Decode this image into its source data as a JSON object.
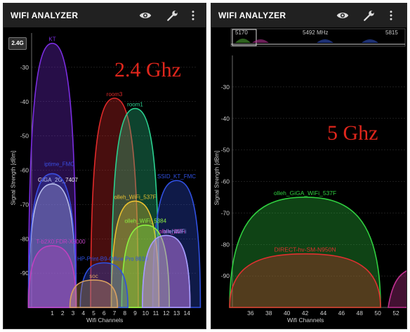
{
  "left": {
    "app_title": "WIFI ANALYZER",
    "band_button": "2.4G",
    "band_label": "2.4 Ghz",
    "y_axis_label": "Signal Strength [dBm]",
    "x_axis_label": "Wifi Channels",
    "y_ticks": [
      "-30",
      "-40",
      "-50",
      "-60",
      "-70",
      "-80",
      "-90"
    ],
    "x_ticks": [
      "1",
      "2",
      "3",
      "4",
      "5",
      "6",
      "7",
      "8",
      "9",
      "10",
      "11",
      "12",
      "13",
      "14"
    ],
    "networks": [
      "KT",
      "room3",
      "room1",
      "SSID_KT_FMC",
      "GiGA_2G_7407",
      "iptime_FMC",
      "olleh_WiFi_537F",
      "olleh_WiFi_5384",
      "olleh_WiFi",
      "T-b2X0:FDR-X3000",
      "HP-Print-B9-Office Pro 8610",
      "soc",
      "ollehWiFi"
    ]
  },
  "right": {
    "app_title": "WIFI ANALYZER",
    "band_label": "5 Ghz",
    "y_axis_label": "Signal Strength [dBm]",
    "x_axis_label": "Wifi Channels",
    "y_ticks": [
      "-30",
      "-40",
      "-50",
      "-60",
      "-70",
      "-80",
      "-90"
    ],
    "x_ticks": [
      "36",
      "38",
      "40",
      "42",
      "44",
      "46",
      "48",
      "50",
      "52"
    ],
    "freq_labels": [
      "5170",
      "5492 MHz",
      "5815"
    ],
    "networks": [
      "olleh_GiGA_WiFi_537F",
      "DIRECT-hv-SM-N950N"
    ]
  },
  "chart_data": [
    {
      "type": "area",
      "title": "2.4 Ghz",
      "xlabel": "Wifi Channels",
      "ylabel": "Signal Strength [dBm]",
      "xlim": [
        -1,
        15
      ],
      "ylim": [
        -100,
        -20
      ],
      "series": [
        {
          "name": "KT",
          "channel": 1,
          "dbm": -23,
          "color": "#7a2de0"
        },
        {
          "name": "room3",
          "channel": 7,
          "dbm": -39,
          "color": "#e02a2a"
        },
        {
          "name": "room1",
          "channel": 9,
          "dbm": -42,
          "color": "#2ad08f"
        },
        {
          "name": "SSID_KT_FMC",
          "channel": 13,
          "dbm": -63,
          "color": "#3050e0"
        },
        {
          "name": "GiGA_2G_7407",
          "channel": 1,
          "dbm": -64,
          "color": "#f0f0f0"
        },
        {
          "name": "iptime_FMC",
          "channel": 1,
          "dbm": -61,
          "color": "#3a4de0"
        },
        {
          "name": "olleh_WiFi_537F",
          "channel": 9,
          "dbm": -69,
          "color": "#e8c030"
        },
        {
          "name": "olleh_WiFi_5384",
          "channel": 10,
          "dbm": -76,
          "color": "#8cf040"
        },
        {
          "name": "olleh_WiFi",
          "channel": 12,
          "dbm": -79,
          "color": "#e040c0"
        },
        {
          "name": "T-b2X0:FDR-X3000",
          "channel": 1,
          "dbm": -82,
          "color": "#c040c0"
        },
        {
          "name": "HP-Print-B9-Office Pro 8610",
          "channel": 6,
          "dbm": -87,
          "color": "#2e4fe0"
        },
        {
          "name": "soc",
          "channel": 5,
          "dbm": -92,
          "color": "#d8a060"
        },
        {
          "name": "ollehWiFi",
          "channel": 12,
          "dbm": -79,
          "color": "#a0a0ff"
        }
      ]
    },
    {
      "type": "area",
      "title": "5 Ghz",
      "xlabel": "Wifi Channels",
      "ylabel": "Signal Strength [dBm]",
      "xlim": [
        34,
        53
      ],
      "ylim": [
        -100,
        -20
      ],
      "series": [
        {
          "name": "olleh_GiGA_WiFi_537F",
          "channel": 42,
          "dbm": -65,
          "color": "#30d040"
        },
        {
          "name": "DIRECT-hv-SM-N950N",
          "channel": 42,
          "dbm": -83,
          "color": "#e03030"
        }
      ]
    }
  ]
}
